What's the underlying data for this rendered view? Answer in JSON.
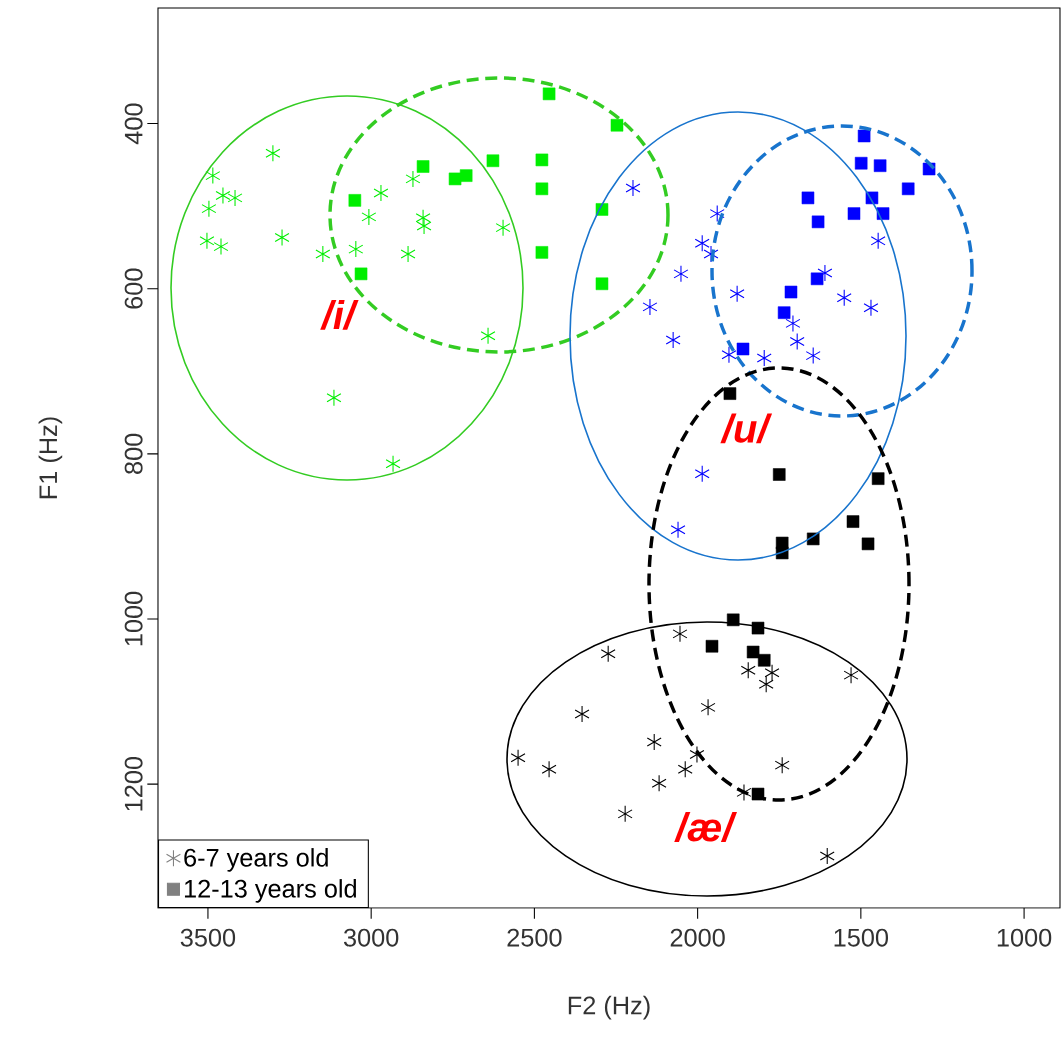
{
  "chart_data": {
    "type": "scatter",
    "xlabel": "F2 (Hz)",
    "ylabel": "F1 (Hz)",
    "xlim": [
      3653,
      890
    ],
    "ylim": [
      1350,
      260
    ],
    "xticks": [
      3500,
      3000,
      2500,
      2000,
      1500,
      1000
    ],
    "yticks": [
      400,
      600,
      800,
      1000,
      1200
    ],
    "legend": "bottom left",
    "series": [
      {
        "marker": "cross",
        "color": "#00ee00",
        "x": [
          3485,
          3301,
          3454,
          3417,
          3497,
          3503,
          3460,
          3273,
          3148,
          3047,
          3007,
          2970,
          2872,
          2841,
          2838,
          2887,
          2596,
          2642,
          3114,
          2933
        ],
        "values": [
          463,
          436,
          487,
          490,
          503,
          542,
          549,
          538,
          558,
          552,
          513,
          484,
          467,
          514,
          524,
          558,
          526,
          657,
          732,
          812
        ]
      },
      {
        "marker": "square",
        "color": "#00ee00",
        "x": [
          2455,
          2247,
          2841,
          2709,
          2743,
          2627,
          2477,
          2477,
          3050,
          2293,
          2477,
          3031,
          2293
        ],
        "values": [
          364,
          402,
          452,
          463,
          467,
          445,
          444,
          479,
          493,
          504,
          556,
          582,
          594
        ]
      },
      {
        "marker": "cross",
        "color": "#0000ff",
        "x": [
          2198,
          1940,
          1986,
          1959,
          2051,
          2146,
          1879,
          2075,
          1904,
          1796,
          1708,
          1695,
          1646,
          1610,
          1551,
          1469,
          1447,
          1986,
          2060
        ],
        "values": [
          478,
          509,
          545,
          558,
          582,
          622,
          606,
          662,
          680,
          684,
          642,
          664,
          681,
          581,
          611,
          623,
          542,
          824,
          892
        ]
      },
      {
        "marker": "square",
        "color": "#0000ff",
        "x": [
          1490,
          1499,
          1441,
          1291,
          1355,
          1662,
          1466,
          1521,
          1432,
          1631,
          1714,
          1634,
          1735,
          1861
        ],
        "values": [
          415,
          448,
          451,
          455,
          479,
          490,
          490,
          509,
          509,
          519,
          604,
          588,
          629,
          673
        ]
      },
      {
        "marker": "cross",
        "color": "#000000",
        "x": [
          2054,
          2274,
          1845,
          1772,
          1790,
          1530,
          1968,
          2354,
          2133,
          2550,
          2455,
          2002,
          2038,
          2118,
          1741,
          1858,
          2222,
          1603
        ],
        "values": [
          1018,
          1042,
          1062,
          1065,
          1079,
          1068,
          1107,
          1115,
          1149,
          1168,
          1182,
          1164,
          1182,
          1199,
          1177,
          1210,
          1236,
          1287
        ]
      },
      {
        "marker": "square",
        "color": "#000000",
        "x": [
          1901,
          1750,
          1447,
          1524,
          1478,
          1646,
          1741,
          1741,
          1891,
          1815,
          1956,
          1830,
          1796,
          1815
        ],
        "values": [
          727,
          825,
          830,
          882,
          909,
          903,
          908,
          920,
          1001,
          1011,
          1033,
          1040,
          1050,
          1212
        ]
      },
      {
        "name": "6-7 years old",
        "marker": "cross",
        "color": "#808080"
      },
      {
        "name": "12-13 years old",
        "marker": "square",
        "color": "#808080"
      }
    ],
    "annotations": [
      "/i/",
      "/u/",
      "/æ/"
    ]
  }
}
